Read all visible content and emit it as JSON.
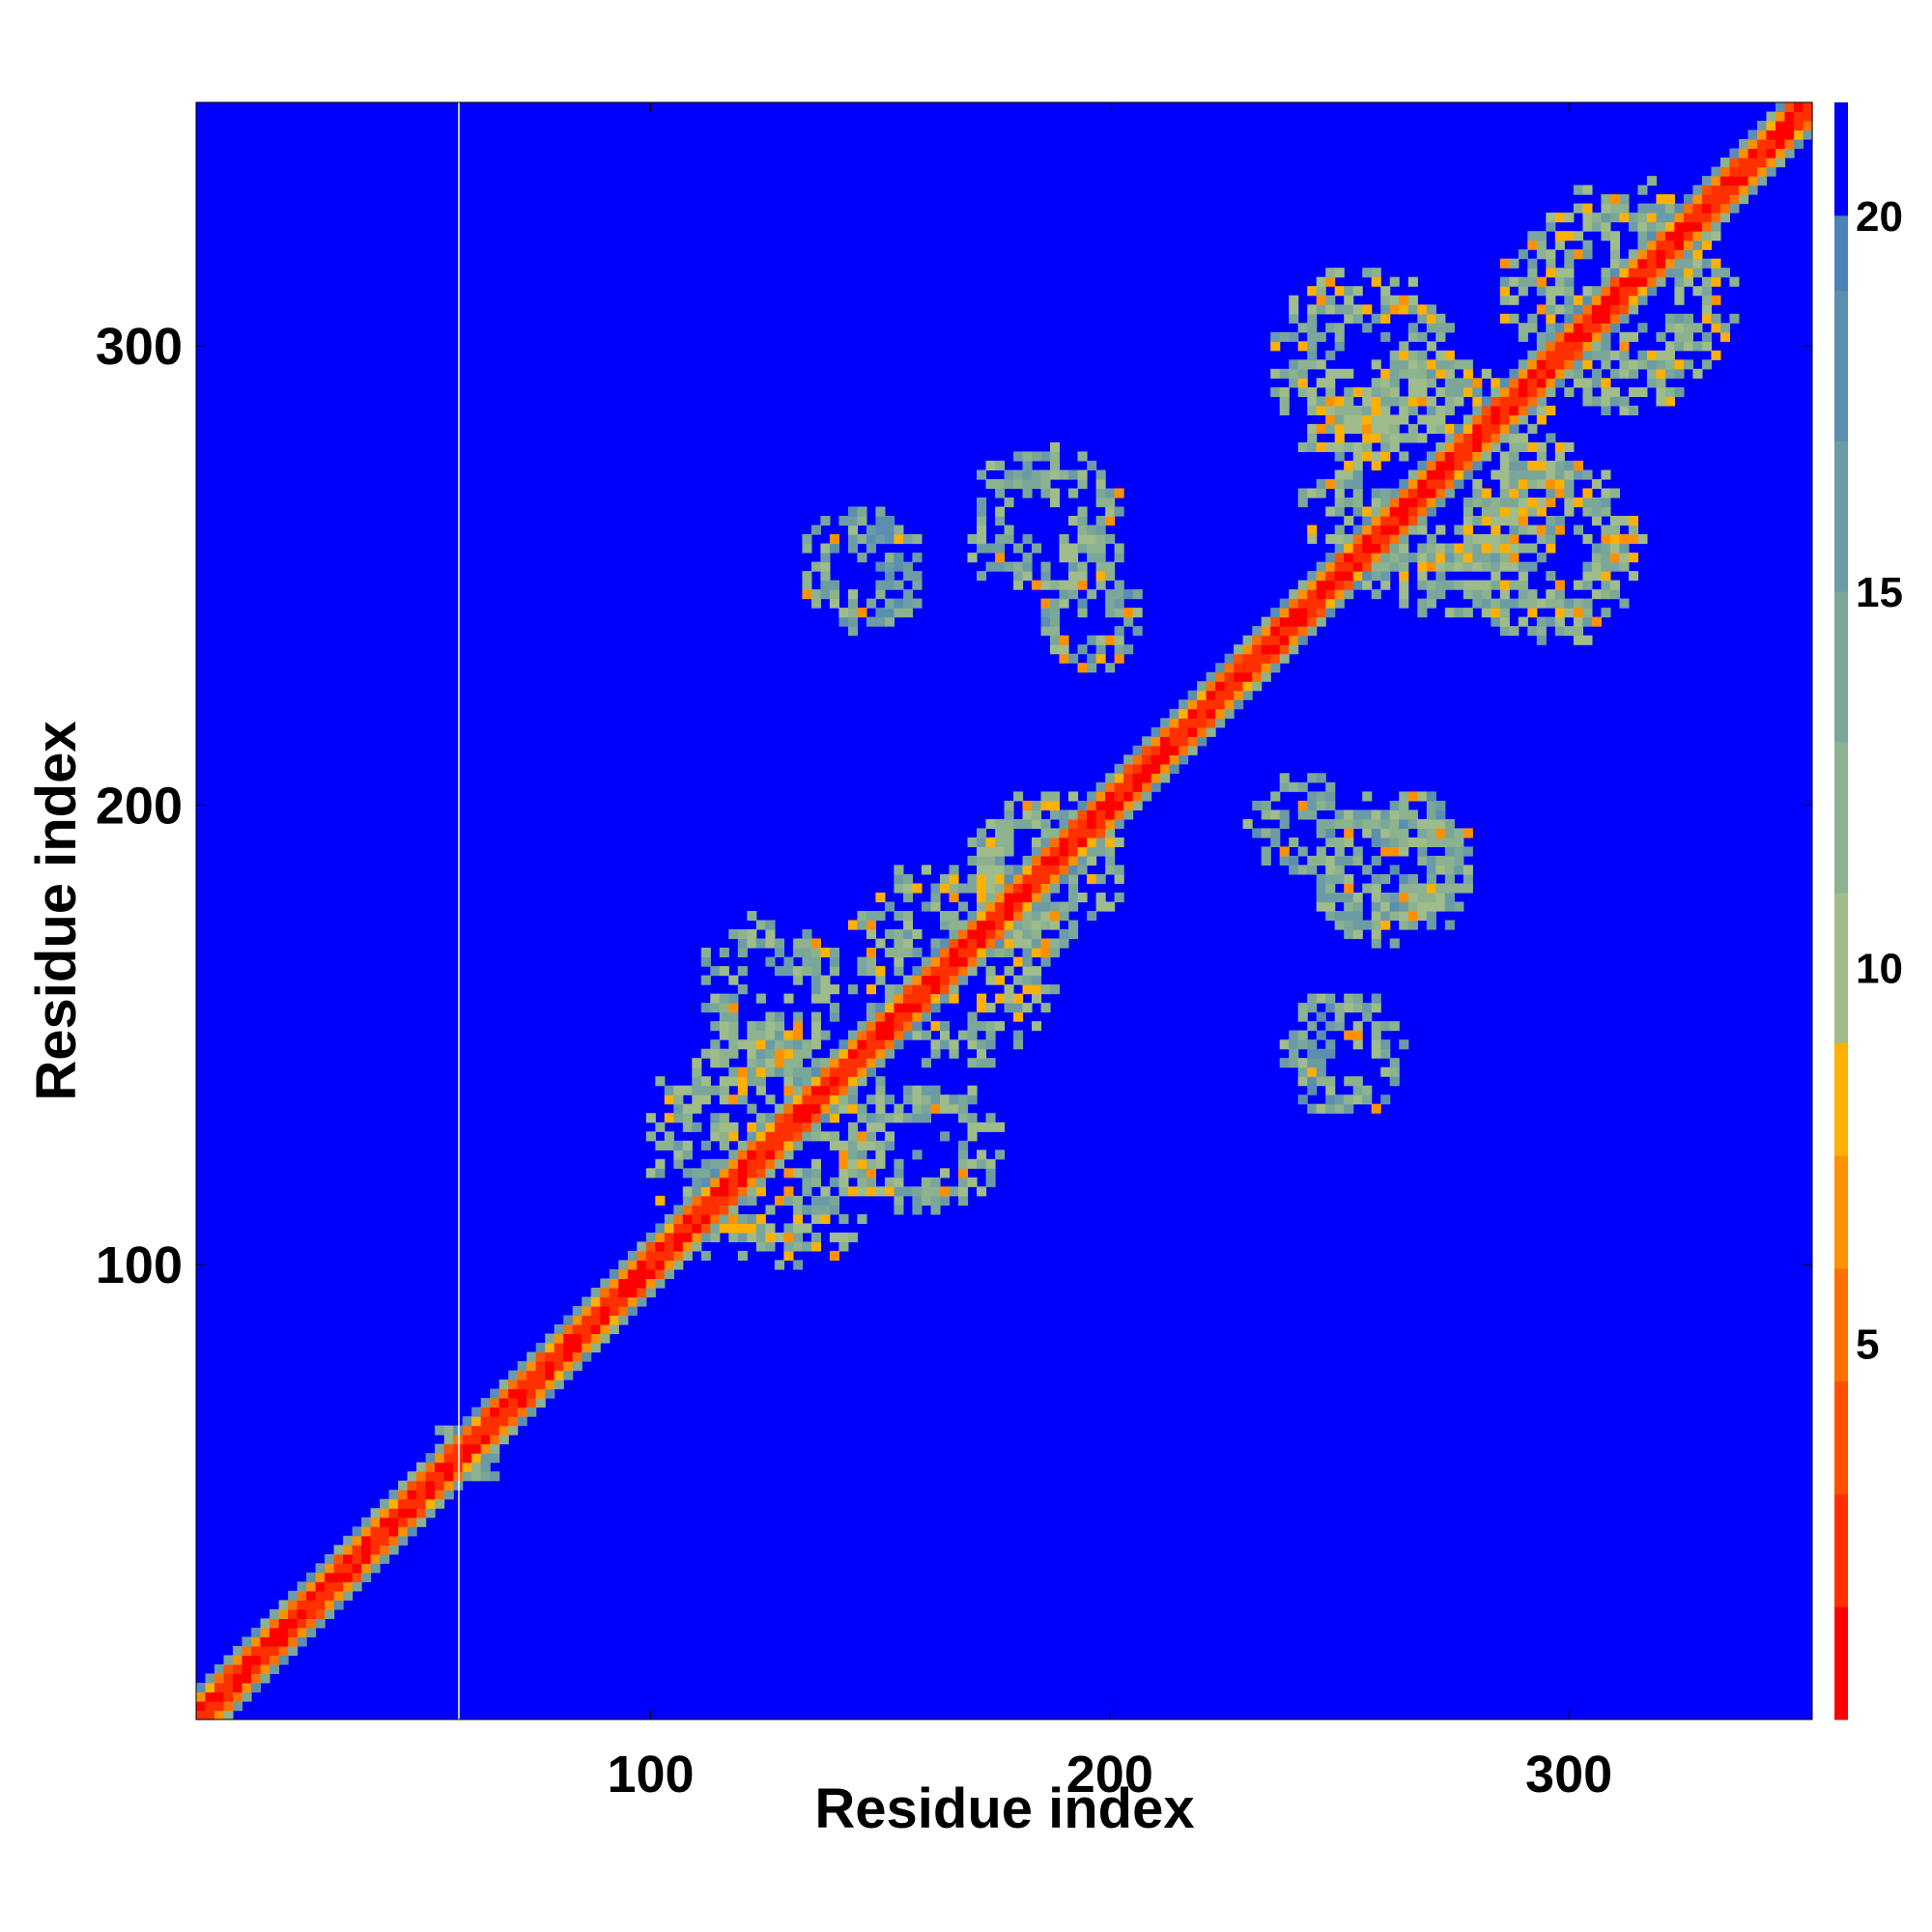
{
  "chart_data": {
    "type": "heatmap",
    "title": "",
    "xlabel": "Residue index",
    "ylabel": "Residue index",
    "xlim": [
      1,
      353
    ],
    "ylim": [
      1,
      353
    ],
    "x_ticks": [
      100,
      200,
      300
    ],
    "y_ticks": [
      100,
      200,
      300
    ],
    "colorbar": {
      "ticks": [
        5,
        10,
        15,
        20
      ],
      "range": [
        0,
        21.5
      ],
      "colors": [
        "#ff0000",
        "#ff3000",
        "#ff5000",
        "#ff7000",
        "#ff9000",
        "#ffb000",
        "#9fbc8a",
        "#8cb28f",
        "#7aa79a",
        "#6b9ca5",
        "#5a8faf",
        "#4b83b6",
        "#0000ff"
      ],
      "boundaries": [
        0,
        1.5,
        3,
        4.5,
        6,
        7.5,
        9,
        11,
        13,
        15,
        17,
        19,
        20,
        21.5
      ]
    },
    "background_value": 21,
    "background_color": "#0000ff",
    "diagonal_band": {
      "core_width_residues": 2,
      "halo_width_residues": 6
    },
    "contact_regions": [
      {
        "x_center": 125,
        "y_center": 125,
        "radius": 28,
        "description_value": 12
      },
      {
        "x_center": 165,
        "y_center": 165,
        "radius": 24,
        "description_value": 12
      },
      {
        "x_center": 185,
        "y_center": 185,
        "radius": 18,
        "description_value": 12
      },
      {
        "x_center": 270,
        "y_center": 270,
        "radius": 30,
        "description_value": 12
      },
      {
        "x_center": 310,
        "y_center": 310,
        "radius": 26,
        "description_value": 12
      },
      {
        "x_center": 295,
        "y_center": 255,
        "radius": 22,
        "description_value": 12
      },
      {
        "x_center": 255,
        "y_center": 295,
        "radius": 22,
        "description_value": 12
      },
      {
        "x_center": 160,
        "y_center": 125,
        "radius": 16,
        "description_value": 13
      },
      {
        "x_center": 125,
        "y_center": 160,
        "radius": 16,
        "description_value": 13
      },
      {
        "x_center": 185,
        "y_center": 260,
        "radius": 18,
        "description_value": 13
      },
      {
        "x_center": 260,
        "y_center": 185,
        "radius": 18,
        "description_value": 13
      },
      {
        "x_center": 145,
        "y_center": 250,
        "radius": 14,
        "description_value": 14
      },
      {
        "x_center": 250,
        "y_center": 145,
        "radius": 14,
        "description_value": 14
      },
      {
        "x_center": 265,
        "y_center": 188,
        "radius": 14,
        "description_value": 14
      },
      {
        "x_center": 240,
        "y_center": 195,
        "radius": 12,
        "description_value": 14
      },
      {
        "x_center": 195,
        "y_center": 240,
        "radius": 12,
        "description_value": 14
      },
      {
        "x_center": 60,
        "y_center": 60,
        "radius": 9,
        "description_value": 13
      }
    ]
  }
}
